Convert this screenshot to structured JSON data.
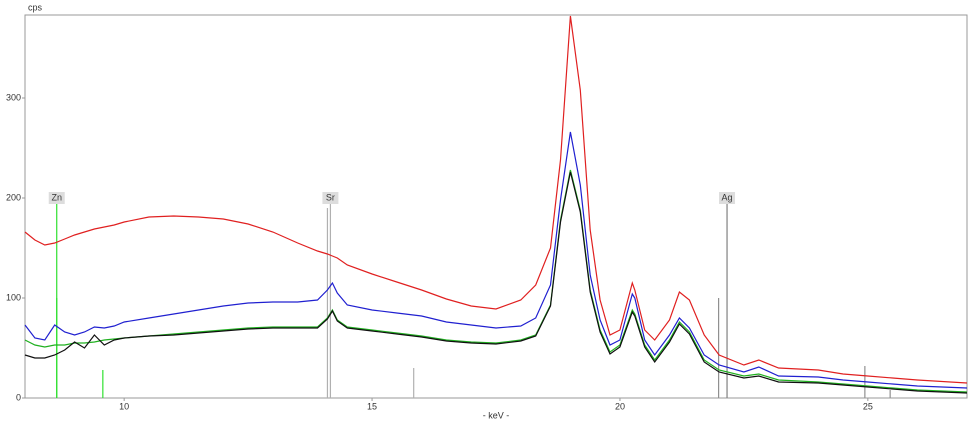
{
  "chart_data": {
    "type": "line",
    "ylabel": "cps",
    "xlabel": "- keV -",
    "xlim": [
      8,
      27
    ],
    "ylim": [
      0,
      383
    ],
    "xticks": [
      10,
      15,
      20,
      25
    ],
    "yticks": [
      0,
      100,
      200,
      300
    ],
    "x": [
      8.0,
      8.2,
      8.4,
      8.6,
      8.8,
      9.0,
      9.2,
      9.4,
      9.6,
      9.8,
      10,
      10.5,
      11,
      11.5,
      12,
      12.5,
      13,
      13.5,
      13.9,
      14.1,
      14.2,
      14.3,
      14.5,
      15,
      15.5,
      16,
      16.5,
      17,
      17.5,
      18,
      18.3,
      18.6,
      18.8,
      19.0,
      19.2,
      19.4,
      19.6,
      19.8,
      20.0,
      20.25,
      20.3,
      20.5,
      20.7,
      21.0,
      21.2,
      21.4,
      21.7,
      22,
      22.5,
      22.8,
      23.2,
      24,
      24.5,
      25,
      25.5,
      26,
      27
    ],
    "series": [
      {
        "color": "#e02020",
        "values": [
          166,
          158,
          153,
          155,
          159,
          163,
          166,
          169,
          171,
          173,
          176,
          181,
          182,
          181,
          179,
          174,
          166,
          155,
          147,
          144,
          142,
          140,
          133,
          124,
          116,
          108,
          99,
          92,
          89,
          98,
          113,
          150,
          238,
          382,
          308,
          168,
          98,
          63,
          68,
          115,
          108,
          68,
          58,
          78,
          106,
          98,
          63,
          43,
          33,
          38,
          30,
          28,
          24,
          22,
          20,
          18,
          15
        ]
      },
      {
        "color": "#2020d0",
        "values": [
          73,
          60,
          58,
          73,
          66,
          63,
          66,
          71,
          70,
          72,
          76,
          80,
          84,
          88,
          92,
          95,
          96,
          96,
          98,
          108,
          115,
          105,
          93,
          88,
          85,
          82,
          76,
          73,
          70,
          72,
          80,
          113,
          198,
          266,
          213,
          123,
          78,
          53,
          58,
          104,
          100,
          58,
          43,
          63,
          80,
          70,
          43,
          33,
          26,
          31,
          22,
          21,
          18,
          16,
          14,
          12,
          10
        ]
      },
      {
        "color": "#20b020",
        "values": [
          58,
          53,
          51,
          53,
          53,
          55,
          55,
          56,
          58,
          59,
          60,
          62,
          64,
          66,
          68,
          70,
          71,
          71,
          71,
          80,
          88,
          78,
          71,
          68,
          65,
          62,
          58,
          56,
          55,
          58,
          63,
          93,
          178,
          228,
          188,
          108,
          68,
          46,
          53,
          88,
          84,
          53,
          38,
          58,
          76,
          66,
          38,
          28,
          22,
          24,
          18,
          16,
          14,
          12,
          10,
          8,
          6
        ]
      },
      {
        "color": "#101010",
        "values": [
          43,
          40,
          40,
          43,
          48,
          56,
          50,
          63,
          53,
          58,
          60,
          62,
          63,
          65,
          67,
          69,
          70,
          70,
          70,
          79,
          87,
          77,
          70,
          67,
          64,
          61,
          57,
          55,
          54,
          57,
          62,
          92,
          176,
          226,
          186,
          106,
          66,
          44,
          51,
          86,
          82,
          51,
          36,
          56,
          74,
          64,
          36,
          26,
          20,
          22,
          16,
          15,
          13,
          11,
          9,
          7,
          5
        ]
      }
    ],
    "markers": [
      {
        "label": "Zn",
        "x": 8.64,
        "height": 200,
        "color": "#30e030"
      },
      {
        "label": "Sr",
        "x": 14.16,
        "height": 200,
        "color": "#b0b0b0"
      },
      {
        "label": "Ag",
        "x": 22.16,
        "height": 200,
        "color": "#808080"
      }
    ],
    "lines": [
      {
        "x": 8.64,
        "height": 100,
        "color": "#30e030"
      },
      {
        "x": 9.57,
        "height": 28,
        "color": "#30e030"
      },
      {
        "x": 14.1,
        "height": 190,
        "color": "#b0b0b0"
      },
      {
        "x": 15.84,
        "height": 30,
        "color": "#b0b0b0"
      },
      {
        "x": 21.99,
        "height": 100,
        "color": "#909090"
      },
      {
        "x": 24.94,
        "height": 32,
        "color": "#909090"
      },
      {
        "x": 25.45,
        "height": 8,
        "color": "#909090"
      }
    ]
  }
}
